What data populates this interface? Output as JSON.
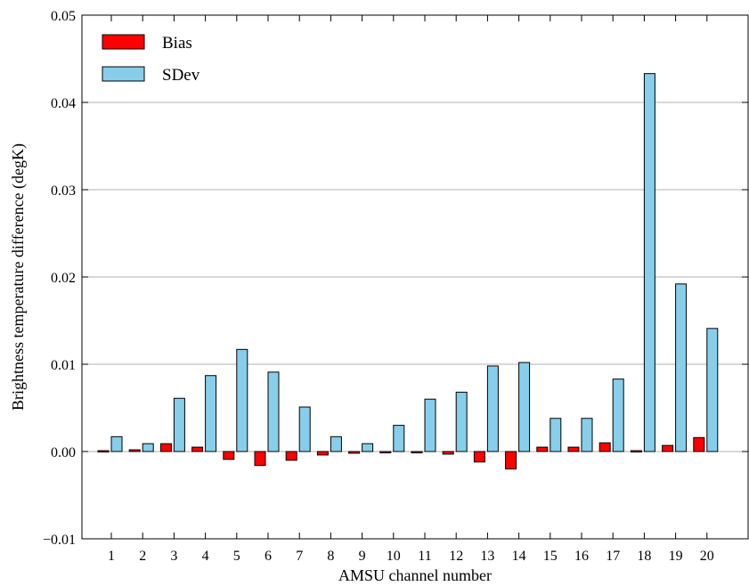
{
  "chart_data": {
    "type": "bar",
    "title": "",
    "xlabel": "AMSU channel number",
    "ylabel": "Brightness temperature difference (degK)",
    "categories": [
      "1",
      "2",
      "3",
      "4",
      "5",
      "6",
      "7",
      "8",
      "9",
      "10",
      "11",
      "12",
      "13",
      "14",
      "15",
      "16",
      "17",
      "18",
      "19",
      "20"
    ],
    "series": [
      {
        "name": "Bias",
        "color": "#ff0000",
        "values": [
          0.0001,
          0.0002,
          0.0009,
          0.0005,
          -0.0009,
          -0.0016,
          -0.001,
          -0.0004,
          -0.0002,
          0.0,
          0.0,
          -0.0003,
          -0.0012,
          -0.002,
          0.0005,
          0.0005,
          0.001,
          0.0001,
          0.0007,
          0.0016
        ]
      },
      {
        "name": "SDev",
        "color": "#87ceeb",
        "values": [
          0.0017,
          0.0009,
          0.0061,
          0.0087,
          0.0117,
          0.0091,
          0.0051,
          0.0017,
          0.0009,
          0.003,
          0.006,
          0.0068,
          0.0098,
          0.0102,
          0.0038,
          0.0038,
          0.0083,
          0.0433,
          0.0192,
          0.0141
        ]
      }
    ],
    "ylim": [
      -0.01,
      0.05
    ],
    "yticks": [
      "−0.01",
      "0.00",
      "0.01",
      "0.02",
      "0.03",
      "0.04",
      "0.05"
    ],
    "grid": "horizontal",
    "legend": "top-left"
  }
}
